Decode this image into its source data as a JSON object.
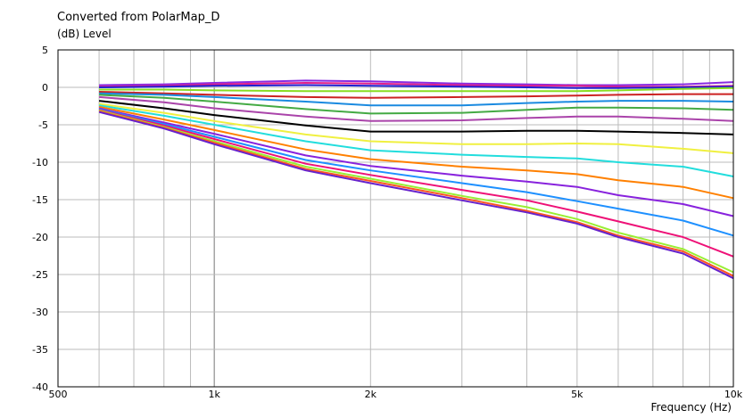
{
  "chart_data": {
    "type": "line",
    "title": "Converted from PolarMap_D",
    "ylabel": "(dB)  Level",
    "xlabel": "Frequency  (Hz)",
    "x_scale": "log",
    "xlim": [
      500,
      10000
    ],
    "ylim": [
      -40,
      5
    ],
    "x_ticks": [
      {
        "value": 500,
        "label": "500"
      },
      {
        "value": 1000,
        "label": "1k"
      },
      {
        "value": 2000,
        "label": "2k"
      },
      {
        "value": 5000,
        "label": "5k"
      },
      {
        "value": 10000,
        "label": "10k"
      }
    ],
    "y_ticks": [
      5,
      0,
      -5,
      -10,
      -15,
      -20,
      -25,
      -30,
      -35,
      -40
    ],
    "grid": true,
    "legend": "none",
    "x": [
      600,
      800,
      1000,
      1500,
      2000,
      3000,
      4000,
      5000,
      6000,
      8000,
      10000
    ],
    "series": [
      {
        "color": "#8a2be2",
        "values": [
          0.3,
          0.4,
          0.6,
          0.9,
          0.8,
          0.5,
          0.4,
          0.3,
          0.3,
          0.4,
          0.7
        ]
      },
      {
        "color": "#e0208a",
        "values": [
          0.1,
          0.2,
          0.4,
          0.6,
          0.5,
          0.3,
          0.2,
          0.2,
          0.1,
          0.1,
          0.2
        ]
      },
      {
        "color": "#2020d0",
        "values": [
          0.0,
          0.1,
          0.2,
          0.3,
          0.2,
          0.1,
          0.0,
          -0.1,
          -0.1,
          0.0,
          0.1
        ]
      },
      {
        "color": "#88dd22",
        "values": [
          -0.3,
          -0.3,
          -0.4,
          -0.5,
          -0.5,
          -0.5,
          -0.5,
          -0.5,
          -0.4,
          -0.2,
          -0.1
        ]
      },
      {
        "color": "#cc2222",
        "values": [
          -0.6,
          -0.8,
          -1.0,
          -1.3,
          -1.4,
          -1.3,
          -1.2,
          -1.1,
          -1.0,
          -0.9,
          -0.9
        ]
      },
      {
        "color": "#1a8ae0",
        "values": [
          -0.8,
          -1.0,
          -1.3,
          -1.9,
          -2.4,
          -2.4,
          -2.1,
          -1.9,
          -1.8,
          -1.8,
          -1.9
        ]
      },
      {
        "color": "#44aa44",
        "values": [
          -1.0,
          -1.4,
          -1.9,
          -2.9,
          -3.5,
          -3.4,
          -3.0,
          -2.7,
          -2.7,
          -2.8,
          -3.0
        ]
      },
      {
        "color": "#aa44aa",
        "values": [
          -1.3,
          -2.0,
          -2.8,
          -3.9,
          -4.5,
          -4.4,
          -4.1,
          -3.9,
          -3.9,
          -4.2,
          -4.5
        ]
      },
      {
        "color": "#000000",
        "values": [
          -1.8,
          -2.8,
          -3.7,
          -5.1,
          -5.9,
          -5.9,
          -5.8,
          -5.8,
          -5.9,
          -6.1,
          -6.3
        ]
      },
      {
        "color": "#f0f040",
        "values": [
          -2.2,
          -3.4,
          -4.5,
          -6.3,
          -7.2,
          -7.6,
          -7.6,
          -7.5,
          -7.6,
          -8.2,
          -8.8
        ]
      },
      {
        "color": "#22dddd",
        "values": [
          -2.4,
          -3.8,
          -5.0,
          -7.2,
          -8.4,
          -9.0,
          -9.3,
          -9.5,
          -10.0,
          -10.6,
          -11.9
        ]
      },
      {
        "color": "#ff8000",
        "values": [
          -2.6,
          -4.3,
          -5.7,
          -8.3,
          -9.6,
          -10.6,
          -11.1,
          -11.6,
          -12.4,
          -13.3,
          -14.8
        ]
      },
      {
        "color": "#8822dd",
        "values": [
          -2.8,
          -4.7,
          -6.2,
          -9.1,
          -10.5,
          -11.8,
          -12.6,
          -13.3,
          -14.4,
          -15.6,
          -17.2
        ]
      },
      {
        "color": "#1e90ff",
        "values": [
          -2.9,
          -4.9,
          -6.6,
          -9.7,
          -11.1,
          -12.8,
          -14.0,
          -15.2,
          -16.2,
          -17.8,
          -19.8
        ]
      },
      {
        "color": "#ee1177",
        "values": [
          -3.0,
          -5.1,
          -6.9,
          -10.2,
          -11.7,
          -13.7,
          -15.1,
          -16.6,
          -17.9,
          -20.0,
          -22.6
        ]
      },
      {
        "color": "#99ee33",
        "values": [
          -3.1,
          -5.3,
          -7.2,
          -10.6,
          -12.2,
          -14.5,
          -16.0,
          -17.6,
          -19.4,
          -21.6,
          -24.7
        ]
      },
      {
        "color": "#ff5522",
        "values": [
          -3.2,
          -5.4,
          -7.4,
          -10.9,
          -12.5,
          -14.8,
          -16.5,
          -18.0,
          -19.8,
          -21.9,
          -25.2
        ]
      },
      {
        "color": "#6622cc",
        "values": [
          -3.3,
          -5.5,
          -7.6,
          -11.1,
          -12.8,
          -15.1,
          -16.7,
          -18.2,
          -20.0,
          -22.2,
          -25.5
        ]
      }
    ]
  }
}
